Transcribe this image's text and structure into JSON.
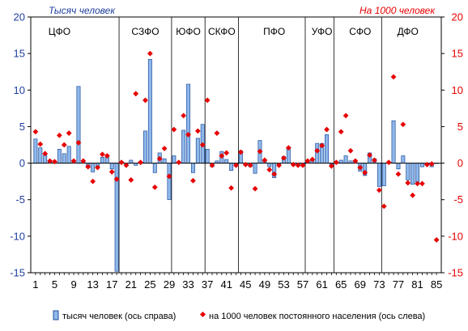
{
  "colors": {
    "bar_fill": "#8fb8ea",
    "bar_stroke": "#1f4e9e",
    "marker": "#e60000",
    "left_axis": "#1f3f9e",
    "right_axis": "#e60000",
    "grid": "#000000"
  },
  "chart_data": {
    "type": "bar+scatter",
    "title_left": "Тысяч человек",
    "title_right": "На 1000 человек",
    "y_left": {
      "min": -15,
      "max": 20,
      "ticks": [
        -15,
        -10,
        -5,
        0,
        5,
        10,
        15,
        20
      ]
    },
    "y_right": {
      "min": -15,
      "max": 20,
      "ticks": [
        -15,
        -10,
        -5,
        0,
        5,
        10,
        15,
        20
      ]
    },
    "x": {
      "min": 1,
      "max": 85,
      "tick_labels": [
        1,
        5,
        9,
        13,
        17,
        21,
        25,
        29,
        33,
        37,
        41,
        45,
        49,
        53,
        57,
        61,
        65,
        69,
        73,
        77,
        81,
        85
      ]
    },
    "region_separators": [
      18.5,
      29.5,
      36.5,
      43.5,
      57.5,
      63.5,
      73.5
    ],
    "regions": [
      {
        "label": "ЦФО",
        "x": 6
      },
      {
        "label": "СЗФО",
        "x": 24
      },
      {
        "label": "ЮФО",
        "x": 33
      },
      {
        "label": "СКФО",
        "x": 40
      },
      {
        "label": "ПФО",
        "x": 51
      },
      {
        "label": "УФО",
        "x": 61
      },
      {
        "label": "СФО",
        "x": 69
      },
      {
        "label": "ДФО",
        "x": 79
      }
    ],
    "series": [
      {
        "name": "тысяч человек (ось справа)",
        "kind": "bar",
        "axis": "right",
        "values": [
          3.3,
          2.1,
          1.1,
          0.3,
          0.2,
          1.9,
          1.3,
          2.3,
          0.4,
          10.5,
          0.3,
          -0.6,
          -1.2,
          -0.7,
          0.8,
          1.1,
          -0.8,
          -14.8,
          0.2,
          -0.3,
          0.4,
          -0.3,
          0.2,
          4.4,
          14.2,
          -1.3,
          1.4,
          0.6,
          -5.0,
          1.0,
          0.2,
          4.5,
          10.8,
          -1.3,
          3.4,
          5.3,
          1.9,
          -0.5,
          0.3,
          1.6,
          0.5,
          -1.0,
          -0.4,
          1.7,
          -0.3,
          -0.5,
          -1.4,
          3.1,
          0.3,
          -0.5,
          -2.0,
          -0.4,
          0.9,
          2.1,
          -0.3,
          -0.4,
          -0.3,
          0.3,
          0.5,
          2.7,
          2.7,
          3.9,
          -0.5,
          0.1,
          0.4,
          1.0,
          0.3,
          0.4,
          -1.1,
          -1.7,
          1.4,
          0.6,
          -3.2,
          -3.1,
          0.1,
          5.8,
          -0.8,
          1.0,
          -2.3,
          -2.9,
          -2.8,
          -0.5,
          -0.3,
          -0.5,
          0.0
        ]
      },
      {
        "name": "на 1000  человек постоянного населения  (ось слева)",
        "kind": "scatter",
        "axis": "left",
        "values": [
          4.3,
          2.6,
          1.3,
          0.3,
          0.2,
          3.8,
          2.5,
          4.1,
          0.3,
          2.8,
          0.3,
          -0.5,
          -2.5,
          -0.6,
          1.2,
          1.0,
          -1.2,
          -2.2,
          0.1,
          -0.3,
          -2.3,
          9.5,
          0.1,
          8.6,
          15.0,
          -3.3,
          0.6,
          2.0,
          -1.8,
          4.6,
          0.1,
          6.5,
          3.9,
          -2.4,
          4.4,
          2.5,
          8.6,
          -0.3,
          4.1,
          1.0,
          1.4,
          -3.4,
          -0.3,
          1.5,
          -0.2,
          -0.3,
          -3.5,
          1.6,
          0.4,
          -0.9,
          -1.5,
          -0.3,
          0.7,
          2.1,
          -0.2,
          -0.3,
          -0.3,
          0.3,
          0.5,
          1.7,
          2.4,
          4.6,
          -0.4,
          0.1,
          4.3,
          6.5,
          1.7,
          0.3,
          -0.6,
          -1.3,
          1.1,
          0.4,
          -3.7,
          -5.9,
          0.1,
          11.8,
          -1.5,
          5.3,
          -2.7,
          -4.4,
          -2.8,
          -2.8,
          -0.2,
          -0.1,
          -10.5
        ]
      }
    ],
    "legend": [
      {
        "kind": "bar",
        "label": "тысяч человек (ось справа)"
      },
      {
        "kind": "marker",
        "label": "на 1000  человек постоянного населения  (ось слева)"
      }
    ],
    "legend_position": "bottom"
  }
}
